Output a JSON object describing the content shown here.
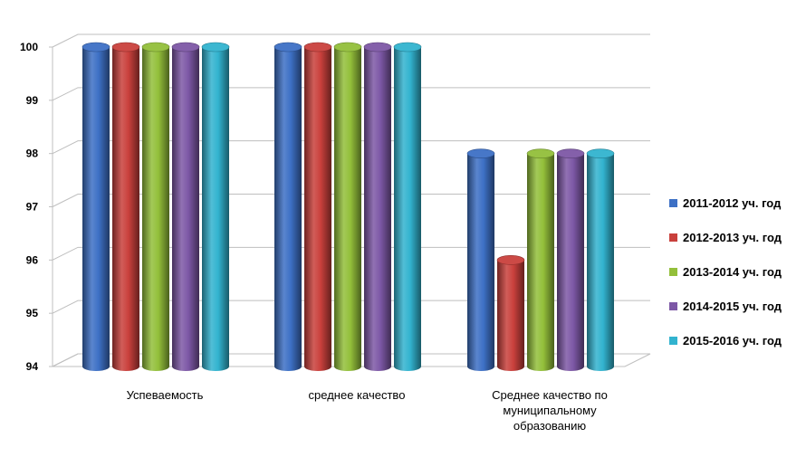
{
  "chart_data": {
    "type": "bar",
    "title": "",
    "xlabel": "",
    "ylabel": "",
    "ylim": [
      94,
      100
    ],
    "yticks": [
      94,
      95,
      96,
      97,
      98,
      99,
      100
    ],
    "grid": true,
    "legend_position": "right",
    "categories": [
      [
        "Успеваемость"
      ],
      [
        "среднее качество"
      ],
      [
        "Среднее качество по",
        "муниципальному",
        "образованию"
      ]
    ],
    "series": [
      {
        "name": "2011-2012 уч. год",
        "color": "#3d70c5",
        "values": [
          100,
          100,
          98
        ]
      },
      {
        "name": "2012-2013 уч. год",
        "color": "#c9403c",
        "values": [
          100,
          100,
          96
        ]
      },
      {
        "name": "2013-2014 уч. год",
        "color": "#93bf3a",
        "values": [
          100,
          100,
          98
        ]
      },
      {
        "name": "2014-2015 уч. год",
        "color": "#7d58a6",
        "values": [
          100,
          100,
          98
        ]
      },
      {
        "name": "2015-2016 уч. год",
        "color": "#32b3cf",
        "values": [
          100,
          100,
          98
        ]
      }
    ]
  }
}
